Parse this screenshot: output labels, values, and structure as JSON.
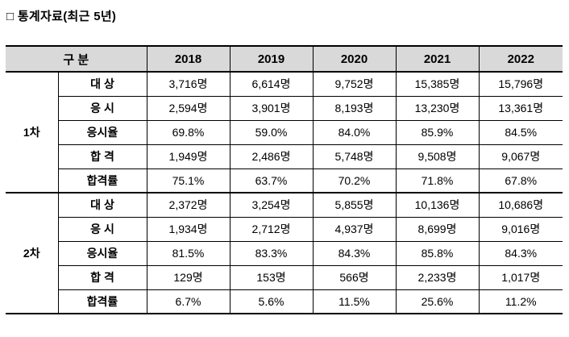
{
  "title": "□ 통계자료(최근 5년)",
  "colors": {
    "header_bg": "#d9d9d9",
    "border": "#000000",
    "text": "#000000"
  },
  "table": {
    "corner_label": "구 분",
    "years": [
      "2018",
      "2019",
      "2020",
      "2021",
      "2022"
    ],
    "sections": [
      {
        "label": "1차",
        "rows": [
          {
            "label": "대 상",
            "values": [
              "3,716명",
              "6,614명",
              "9,752명",
              "15,385명",
              "15,796명"
            ]
          },
          {
            "label": "응 시",
            "values": [
              "2,594명",
              "3,901명",
              "8,193명",
              "13,230명",
              "13,361명"
            ]
          },
          {
            "label": "응시율",
            "values": [
              "69.8%",
              "59.0%",
              "84.0%",
              "85.9%",
              "84.5%"
            ]
          },
          {
            "label": "합 격",
            "values": [
              "1,949명",
              "2,486명",
              "5,748명",
              "9,508명",
              "9,067명"
            ]
          },
          {
            "label": "합격률",
            "values": [
              "75.1%",
              "63.7%",
              "70.2%",
              "71.8%",
              "67.8%"
            ]
          }
        ]
      },
      {
        "label": "2차",
        "rows": [
          {
            "label": "대 상",
            "values": [
              "2,372명",
              "3,254명",
              "5,855명",
              "10,136명",
              "10,686명"
            ]
          },
          {
            "label": "응 시",
            "values": [
              "1,934명",
              "2,712명",
              "4,937명",
              "8,699명",
              "9,016명"
            ]
          },
          {
            "label": "응시율",
            "values": [
              "81.5%",
              "83.3%",
              "84.3%",
              "85.8%",
              "84.3%"
            ]
          },
          {
            "label": "합 격",
            "values": [
              "129명",
              "153명",
              "566명",
              "2,233명",
              "1,017명"
            ]
          },
          {
            "label": "합격률",
            "values": [
              "6.7%",
              "5.6%",
              "11.5%",
              "25.6%",
              "11.2%"
            ]
          }
        ]
      }
    ]
  }
}
